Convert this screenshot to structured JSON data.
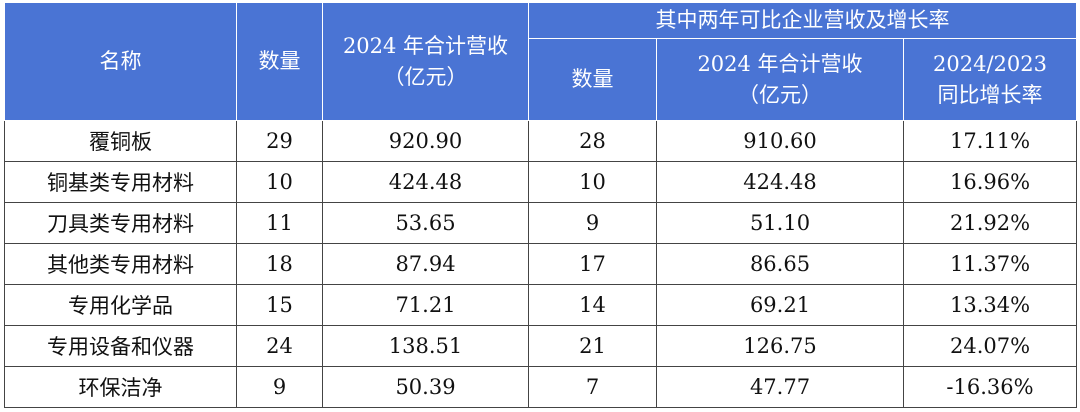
{
  "headers": {
    "name": "名称",
    "count": "数量",
    "revenue_line1": "2024 年合计营收",
    "revenue_line2": "（亿元）",
    "group": "其中两年可比企业营收及增长率",
    "sub_count": "数量",
    "sub_revenue_line1": "2024 年合计营收",
    "sub_revenue_line2": "（亿元）",
    "growth_line1": "2024/2023",
    "growth_line2": "同比增长率"
  },
  "rows": [
    {
      "name": "覆铜板",
      "count": "29",
      "revenue": "920.90",
      "comp_count": "28",
      "comp_revenue": "910.60",
      "growth": "17.11%"
    },
    {
      "name": "铜基类专用材料",
      "count": "10",
      "revenue": "424.48",
      "comp_count": "10",
      "comp_revenue": "424.48",
      "growth": "16.96%"
    },
    {
      "name": "刀具类专用材料",
      "count": "11",
      "revenue": "53.65",
      "comp_count": "9",
      "comp_revenue": "51.10",
      "growth": "21.92%"
    },
    {
      "name": "其他类专用材料",
      "count": "18",
      "revenue": "87.94",
      "comp_count": "17",
      "comp_revenue": "86.65",
      "growth": "11.37%"
    },
    {
      "name": "专用化学品",
      "count": "15",
      "revenue": "71.21",
      "comp_count": "14",
      "comp_revenue": "69.21",
      "growth": "13.34%"
    },
    {
      "name": "专用设备和仪器",
      "count": "24",
      "revenue": "138.51",
      "comp_count": "21",
      "comp_revenue": "126.75",
      "growth": "24.07%"
    },
    {
      "name": "环保洁净",
      "count": "9",
      "revenue": "50.39",
      "comp_count": "7",
      "comp_revenue": "47.77",
      "growth": "-16.36%"
    }
  ],
  "colors": {
    "header_bg": "#4a74d4",
    "header_text": "#ffffff",
    "border": "#444444"
  }
}
